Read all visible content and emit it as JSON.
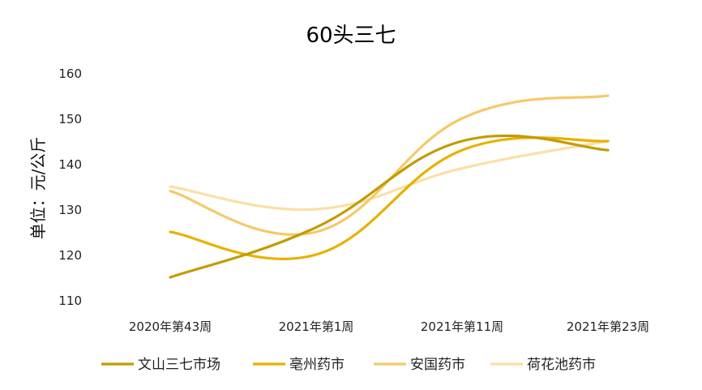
{
  "chart_data": {
    "type": "line",
    "title": "60头三七",
    "ylabel": "单位：元/公斤",
    "xlabel": "",
    "categories": [
      "2020年第43周",
      "2021年第1周",
      "2021年第11周",
      "2021年第23周"
    ],
    "ylim": [
      110,
      160
    ],
    "yticks": [
      110,
      120,
      130,
      140,
      150,
      160
    ],
    "grid": false,
    "legend_position": "bottom",
    "series": [
      {
        "name": "文山三七市场",
        "values": [
          115,
          126,
          145,
          143
        ],
        "color": "#C49A00"
      },
      {
        "name": "亳州药市",
        "values": [
          125,
          120,
          143,
          145
        ],
        "color": "#E8B100"
      },
      {
        "name": "安国药市",
        "values": [
          134,
          125,
          150,
          155
        ],
        "color": "#F5C96A"
      },
      {
        "name": "荷花池药市",
        "values": [
          135,
          130,
          139,
          145
        ],
        "color": "#FBDFA6"
      }
    ]
  }
}
